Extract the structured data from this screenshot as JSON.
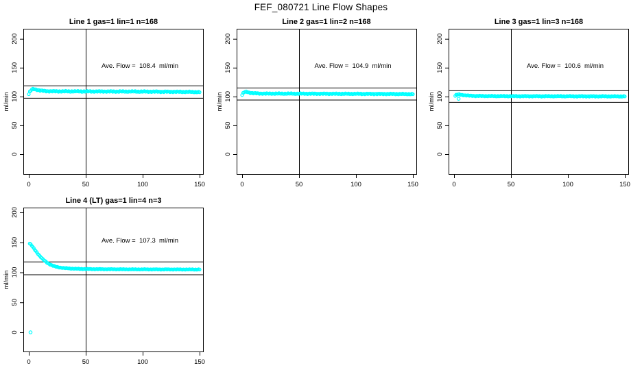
{
  "page_title": "FEF_080721  Line Flow Shapes",
  "colors": {
    "background": "#ffffff",
    "points": "#00FFFF",
    "reference_lines": "#000000",
    "text": "#000000"
  },
  "chart_data": [
    {
      "type": "scatter",
      "title": "Line 1 gas=1 lin=1 n=168",
      "line": 1,
      "gas": 1,
      "lin": 1,
      "n": 168,
      "annotation": "Ave. Flow =  108.4  ml/min",
      "ave_flow_ml_min": 108.4,
      "xlabel": "",
      "ylabel": "ml/min",
      "xticks": [
        0,
        50,
        100,
        150
      ],
      "yticks": [
        0,
        50,
        100,
        150,
        200
      ],
      "xlim": [
        -6,
        156
      ],
      "ylim": [
        -35,
        217
      ],
      "grid": false,
      "vline_x": 50,
      "hline_upper": 119.2,
      "hline_lower": 97.6,
      "marker": "open-circle",
      "color": "#00FFFF",
      "points_count": 168,
      "x_start": 0,
      "x_end": 150,
      "noise_amp": 1.0,
      "anchors": [
        [
          0,
          104
        ],
        [
          1,
          108.5
        ],
        [
          2,
          111
        ],
        [
          3,
          112.5
        ],
        [
          4,
          113
        ],
        [
          5,
          112.8
        ],
        [
          7,
          111.8
        ],
        [
          9,
          110.8
        ],
        [
          12,
          109.9
        ],
        [
          16,
          109.3
        ],
        [
          22,
          109
        ],
        [
          35,
          108.9
        ],
        [
          55,
          108.8
        ],
        [
          80,
          108.7
        ],
        [
          105,
          108.5
        ],
        [
          130,
          108.2
        ],
        [
          150,
          107.7
        ]
      ],
      "outliers": []
    },
    {
      "type": "scatter",
      "title": "Line 2 gas=1 lin=2 n=168",
      "line": 2,
      "gas": 1,
      "lin": 2,
      "n": 168,
      "annotation": "Ave. Flow =  104.9  ml/min",
      "ave_flow_ml_min": 104.9,
      "xlabel": "",
      "ylabel": "ml/min",
      "xticks": [
        0,
        50,
        100,
        150
      ],
      "yticks": [
        0,
        50,
        100,
        150,
        200
      ],
      "xlim": [
        -6,
        156
      ],
      "ylim": [
        -35,
        217
      ],
      "grid": false,
      "vline_x": 50,
      "hline_upper": 115.4,
      "hline_lower": 94.4,
      "marker": "open-circle",
      "color": "#00FFFF",
      "points_count": 168,
      "x_start": 0,
      "x_end": 150,
      "noise_amp": 0.9,
      "anchors": [
        [
          0,
          102.5
        ],
        [
          1,
          106
        ],
        [
          2,
          107.8
        ],
        [
          3.5,
          108.3
        ],
        [
          5,
          107.6
        ],
        [
          7,
          106.6
        ],
        [
          10,
          105.8
        ],
        [
          14,
          105.3
        ],
        [
          20,
          105.1
        ],
        [
          35,
          105
        ],
        [
          60,
          104.9
        ],
        [
          90,
          104.7
        ],
        [
          120,
          104.5
        ],
        [
          150,
          104.2
        ]
      ],
      "outliers": []
    },
    {
      "type": "scatter",
      "title": "Line 3 gas=1 lin=3 n=168",
      "line": 3,
      "gas": 1,
      "lin": 3,
      "n": 168,
      "annotation": "Ave. Flow =  100.6  ml/min",
      "ave_flow_ml_min": 100.6,
      "xlabel": "",
      "ylabel": "ml/min",
      "xticks": [
        0,
        50,
        100,
        150
      ],
      "yticks": [
        0,
        50,
        100,
        150,
        200
      ],
      "xlim": [
        -6,
        156
      ],
      "ylim": [
        -35,
        217
      ],
      "grid": false,
      "vline_x": 50,
      "hline_upper": 110.7,
      "hline_lower": 90.5,
      "marker": "open-circle",
      "color": "#00FFFF",
      "points_count": 168,
      "x_start": 1,
      "x_end": 150,
      "noise_amp": 0.8,
      "anchors": [
        [
          1,
          101
        ],
        [
          2,
          102.8
        ],
        [
          3.5,
          103.6
        ],
        [
          5,
          103.4
        ],
        [
          7,
          102.8
        ],
        [
          10,
          102
        ],
        [
          14,
          101.4
        ],
        [
          19,
          101
        ],
        [
          27,
          100.8
        ],
        [
          45,
          100.6
        ],
        [
          75,
          100.5
        ],
        [
          110,
          100.4
        ],
        [
          150,
          100.2
        ]
      ],
      "outliers": [
        [
          4,
          96
        ]
      ]
    },
    {
      "type": "scatter",
      "title": "Line 4 (LT) gas=1 lin=4 n=3",
      "line": 4,
      "gas": 1,
      "lin": 4,
      "n": 3,
      "annotation": "Ave. Flow =  107.3  ml/min",
      "ave_flow_ml_min": 107.3,
      "xlabel": "",
      "ylabel": "ml/min",
      "xticks": [
        0,
        50,
        100,
        150
      ],
      "yticks": [
        0,
        50,
        100,
        150,
        200
      ],
      "xlim": [
        -6,
        156
      ],
      "ylim": [
        -33,
        208
      ],
      "grid": false,
      "vline_x": 50,
      "hline_upper": 118.0,
      "hline_lower": 96.6,
      "marker": "open-circle",
      "color": "#00FFFF",
      "points_count": 168,
      "x_start": 0.8,
      "x_end": 150,
      "noise_amp": 0.55,
      "anchors": [
        [
          0.8,
          148
        ],
        [
          2,
          146
        ],
        [
          3,
          143.5
        ],
        [
          4,
          141
        ],
        [
          5,
          138.5
        ],
        [
          6,
          136
        ],
        [
          7,
          133.5
        ],
        [
          8,
          131
        ],
        [
          9,
          128.7
        ],
        [
          10,
          126.5
        ],
        [
          11,
          124.5
        ],
        [
          12,
          122.6
        ],
        [
          13,
          120.8
        ],
        [
          14,
          119.2
        ],
        [
          15,
          117.7
        ],
        [
          16,
          116.3
        ],
        [
          17,
          115
        ],
        [
          18,
          113.9
        ],
        [
          19,
          112.9
        ],
        [
          20,
          112
        ],
        [
          22,
          110.5
        ],
        [
          24,
          109.4
        ],
        [
          26,
          108.5
        ],
        [
          28,
          107.9
        ],
        [
          30,
          107.4
        ],
        [
          33,
          106.9
        ],
        [
          36,
          106.5
        ],
        [
          40,
          106.1
        ],
        [
          45,
          105.8
        ],
        [
          50,
          105.6
        ],
        [
          60,
          105.4
        ],
        [
          75,
          105.2
        ],
        [
          90,
          105.1
        ],
        [
          110,
          105
        ],
        [
          130,
          104.9
        ],
        [
          150,
          104.8
        ]
      ],
      "outliers": [
        [
          1.5,
          0
        ]
      ]
    }
  ]
}
